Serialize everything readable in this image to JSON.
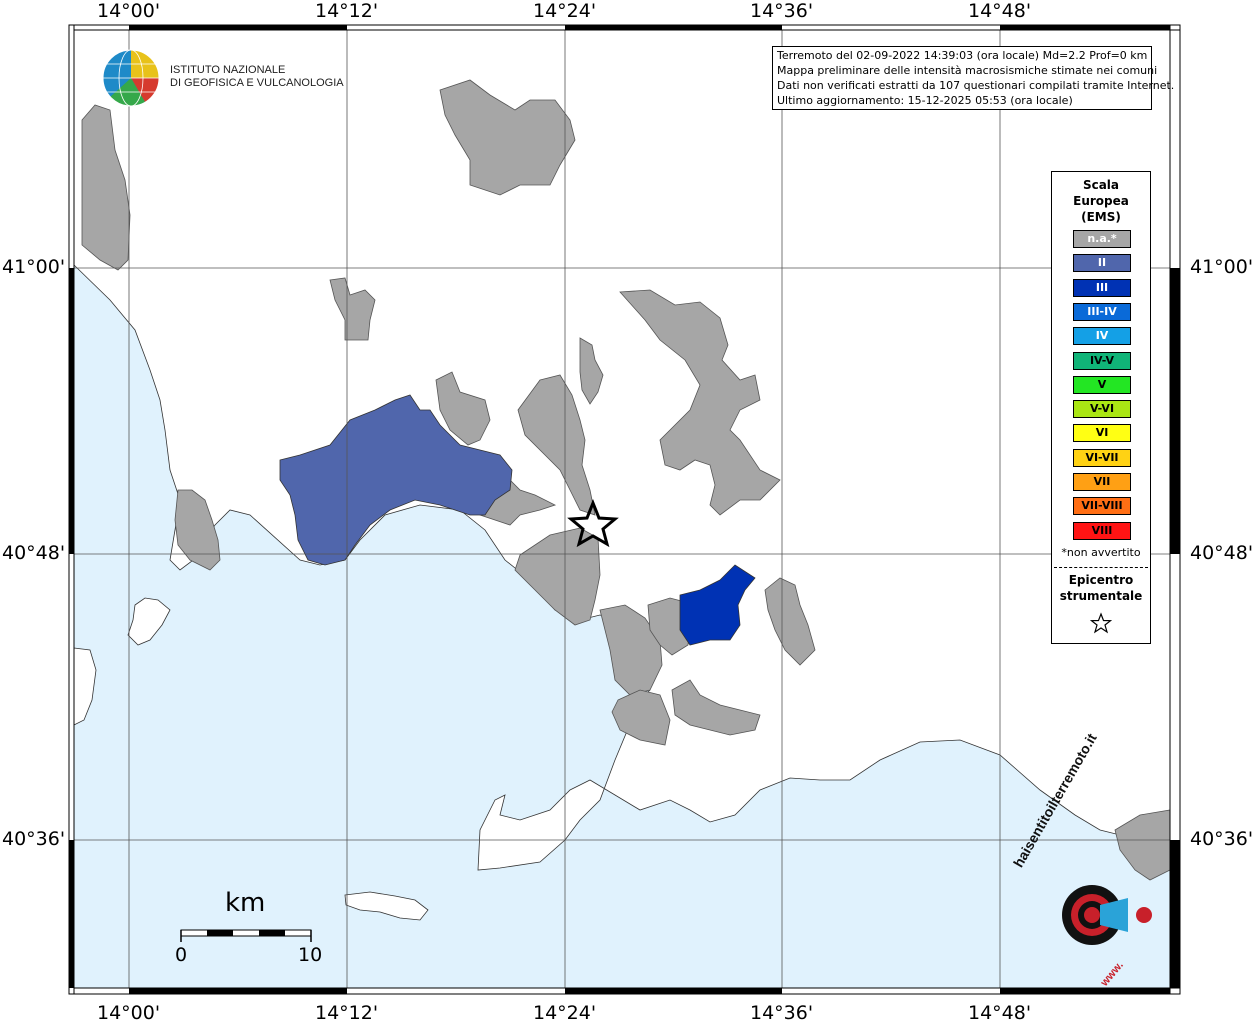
{
  "map": {
    "lon_labels": [
      "14°00'",
      "14°12'",
      "14°24'",
      "14°36'",
      "14°48'"
    ],
    "lat_labels": [
      "41°00'",
      "40°48'",
      "40°36'"
    ],
    "colors": {
      "sea": "#e0f2fd",
      "land": "#ffffff",
      "na": "#a6a6a6",
      "II": "#5066ac",
      "III": "#0032b4"
    }
  },
  "info": {
    "line1": "Terremoto del 02-09-2022 14:39:03 (ora locale) Md=2.2 Prof=0 km",
    "line2": "Mappa preliminare delle intensità macrosismiche stimate nei comuni",
    "line3": "Dati non verificati estratti da 107 questionari compilati tramite Internet.",
    "line4": "Ultimo aggiornamento: 15-12-2025 05:53 (ora locale)"
  },
  "logo": {
    "line1": "ISTITUTO NAZIONALE",
    "line2": "DI GEOFISICA E VULCANOLOGIA"
  },
  "legend": {
    "title1": "Scala",
    "title2": "Europea",
    "title3": "(EMS)",
    "items": [
      {
        "label": "n.a.*",
        "color": "#a6a6a6",
        "text": "#ffffff"
      },
      {
        "label": "II",
        "color": "#5066ac",
        "text": "#ffffff"
      },
      {
        "label": "III",
        "color": "#0032b4",
        "text": "#ffffff"
      },
      {
        "label": "III-IV",
        "color": "#0a6ad8",
        "text": "#ffffff"
      },
      {
        "label": "IV",
        "color": "#14a0e6",
        "text": "#ffffff"
      },
      {
        "label": "IV-V",
        "color": "#10b478",
        "text": "#000000"
      },
      {
        "label": "V",
        "color": "#23e623",
        "text": "#000000"
      },
      {
        "label": "V-VI",
        "color": "#aae614",
        "text": "#000000"
      },
      {
        "label": "VI",
        "color": "#ffff14",
        "text": "#000000"
      },
      {
        "label": "VI-VII",
        "color": "#ffd214",
        "text": "#000000"
      },
      {
        "label": "VII",
        "color": "#ffa014",
        "text": "#000000"
      },
      {
        "label": "VII-VIII",
        "color": "#ff6e14",
        "text": "#000000"
      },
      {
        "label": "VIII",
        "color": "#ff1414",
        "text": "#000000"
      }
    ],
    "not_felt": "*non avvertito",
    "epicenter1": "Epicentro",
    "epicenter2": "strumentale"
  },
  "scalebar": {
    "unit": "km",
    "min": "0",
    "max": "10"
  },
  "hsit": {
    "site": "haisentitoilterremoto.it",
    "www": "www."
  }
}
